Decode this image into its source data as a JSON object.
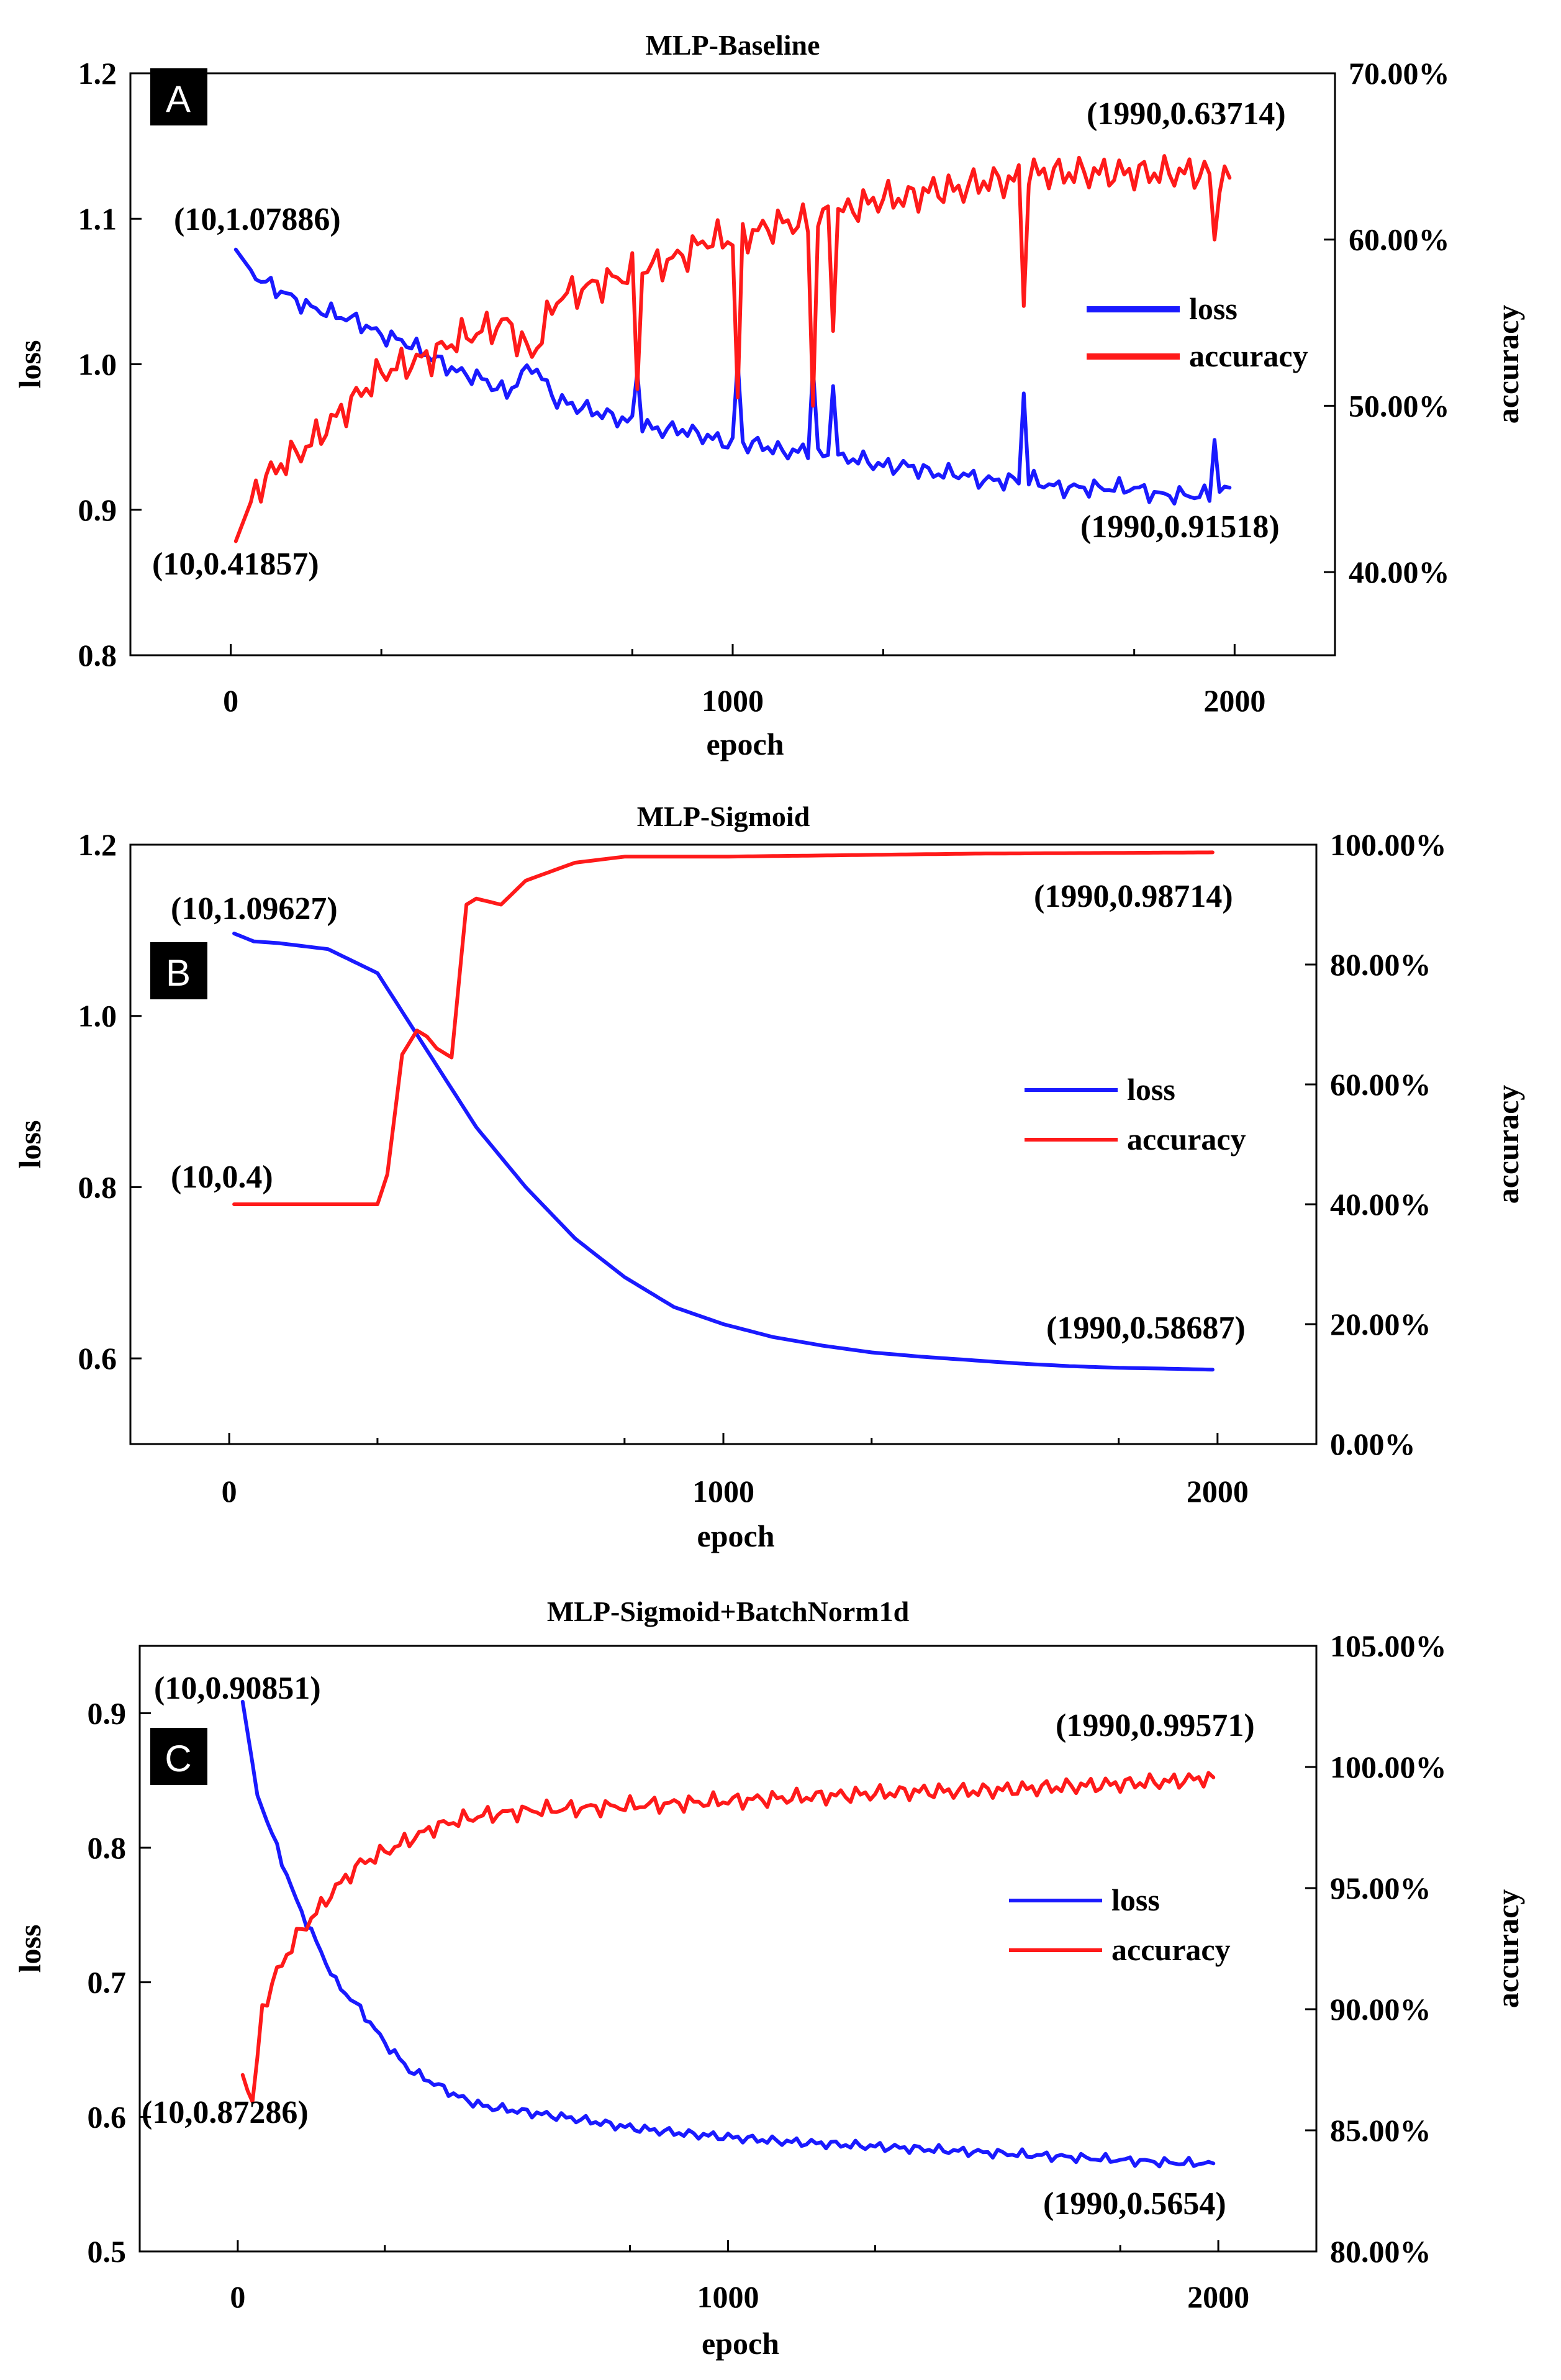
{
  "chart_data": [
    {
      "type": "line",
      "panel": "A",
      "title": "MLP-Baseline",
      "xlabel": "epoch",
      "ylabel": "loss",
      "y2label": "accuracy",
      "xlim": [
        -200,
        2200
      ],
      "ylim": [
        0.8,
        1.2
      ],
      "y2lim": [
        0.35,
        0.7
      ],
      "x_ticks": [
        0,
        1000,
        2000
      ],
      "y_ticks": [
        0.8,
        0.9,
        1.0,
        1.1,
        1.2
      ],
      "y_tick_labels": [
        "0.8",
        "0.9",
        "1.0",
        "1.1",
        "1.2"
      ],
      "y2_ticks": [
        0.4,
        0.5,
        0.6,
        0.7
      ],
      "y2_tick_labels": [
        "40.00%",
        "50.00%",
        "60.00%",
        "70.00%"
      ],
      "legend": {
        "position": "middle-right",
        "loss_label": "loss",
        "accuracy_label": "accuracy"
      },
      "annotations": {
        "loss_start": "(10,1.07886)",
        "loss_end": "(1990,0.91518)",
        "acc_start": "(10,0.41857)",
        "acc_end": "(1990,0.63714)"
      },
      "series": [
        {
          "name": "loss",
          "axis": "left",
          "color": "#1a1aff",
          "x": [
            10,
            50,
            100,
            150,
            200,
            250,
            300,
            350,
            400,
            450,
            500,
            550,
            600,
            650,
            700,
            750,
            800,
            850,
            900,
            950,
            1000,
            1050,
            1100,
            1150,
            1200,
            1250,
            1300,
            1350,
            1400,
            1450,
            1500,
            1550,
            1600,
            1650,
            1700,
            1750,
            1800,
            1850,
            1900,
            1950,
            1990
          ],
          "y": [
            1.07886,
            1.06,
            1.05,
            1.04,
            1.035,
            1.03,
            1.02,
            1.015,
            1.005,
            0.995,
            0.99,
            0.98,
            1.0,
            0.975,
            0.97,
            0.965,
            0.96,
            0.955,
            0.955,
            0.95,
            0.945,
            0.945,
            0.94,
            0.94,
            0.935,
            0.935,
            0.93,
            0.93,
            0.925,
            0.925,
            0.92,
            0.92,
            0.92,
            0.915,
            0.915,
            0.915,
            0.915,
            0.91,
            0.91,
            0.91,
            0.91518
          ],
          "spikes": [
            [
              810,
              0.995
            ],
            [
              1010,
              1.002
            ],
            [
              1160,
              0.998
            ],
            [
              1200,
              0.985
            ],
            [
              1580,
              0.98
            ],
            [
              1960,
              0.948
            ]
          ]
        },
        {
          "name": "accuracy",
          "axis": "right",
          "color": "#ff1a1a",
          "x": [
            10,
            50,
            100,
            150,
            200,
            250,
            300,
            350,
            400,
            450,
            500,
            550,
            600,
            650,
            700,
            750,
            800,
            850,
            900,
            950,
            1000,
            1050,
            1100,
            1150,
            1200,
            1250,
            1300,
            1350,
            1400,
            1450,
            1500,
            1550,
            1600,
            1650,
            1700,
            1750,
            1800,
            1850,
            1900,
            1950,
            1990
          ],
          "y": [
            0.41857,
            0.45,
            0.465,
            0.475,
            0.49,
            0.505,
            0.52,
            0.525,
            0.53,
            0.54,
            0.545,
            0.55,
            0.53,
            0.565,
            0.57,
            0.575,
            0.58,
            0.585,
            0.59,
            0.6,
            0.6,
            0.605,
            0.61,
            0.61,
            0.615,
            0.62,
            0.625,
            0.625,
            0.63,
            0.63,
            0.635,
            0.635,
            0.64,
            0.64,
            0.64,
            0.64,
            0.64,
            0.64,
            0.64,
            0.64,
            0.63714
          ],
          "spikes": [
            [
              810,
              0.51
            ],
            [
              1010,
              0.505
            ],
            [
              1160,
              0.5
            ],
            [
              1200,
              0.545
            ],
            [
              1580,
              0.56
            ],
            [
              1960,
              0.6
            ]
          ]
        }
      ]
    },
    {
      "type": "line",
      "panel": "B",
      "title": "MLP-Sigmoid",
      "xlabel": "epoch",
      "ylabel": "loss",
      "y2label": "accuracy",
      "xlim": [
        -200,
        2200
      ],
      "ylim": [
        0.5,
        1.2
      ],
      "y2lim": [
        0.0,
        1.0
      ],
      "x_ticks": [
        0,
        1000,
        2000
      ],
      "y_ticks": [
        0.6,
        0.8,
        1.0,
        1.2
      ],
      "y_tick_labels": [
        "0.6",
        "0.8",
        "1.0",
        "1.2"
      ],
      "y2_ticks": [
        0.0,
        0.2,
        0.4,
        0.6,
        0.8,
        1.0
      ],
      "y2_tick_labels": [
        "0.00%",
        "20.00%",
        "40.00%",
        "60.00%",
        "80.00%",
        "100.00%"
      ],
      "legend": {
        "position": "middle-right",
        "loss_label": "loss",
        "accuracy_label": "accuracy"
      },
      "annotations": {
        "loss_start": "(10,1.09627)",
        "loss_end": "(1990,0.58687)",
        "acc_start": "(10,0.4)",
        "acc_end": "(1990,0.98714)"
      },
      "series": [
        {
          "name": "loss",
          "axis": "left",
          "color": "#1a1aff",
          "x": [
            10,
            50,
            100,
            200,
            300,
            400,
            500,
            600,
            700,
            800,
            900,
            1000,
            1100,
            1200,
            1300,
            1400,
            1500,
            1600,
            1700,
            1800,
            1900,
            1990
          ],
          "y": [
            1.09627,
            1.087,
            1.085,
            1.078,
            1.05,
            0.96,
            0.87,
            0.8,
            0.74,
            0.695,
            0.66,
            0.64,
            0.625,
            0.615,
            0.607,
            0.602,
            0.598,
            0.594,
            0.591,
            0.589,
            0.588,
            0.58687
          ]
        },
        {
          "name": "accuracy",
          "axis": "right",
          "color": "#ff1a1a",
          "x": [
            10,
            100,
            200,
            300,
            320,
            350,
            380,
            400,
            420,
            450,
            480,
            500,
            550,
            600,
            700,
            800,
            1000,
            1500,
            1990
          ],
          "y": [
            0.4,
            0.4,
            0.4,
            0.4,
            0.45,
            0.65,
            0.69,
            0.68,
            0.66,
            0.645,
            0.9,
            0.91,
            0.9,
            0.94,
            0.97,
            0.98,
            0.98,
            0.985,
            0.98714
          ]
        }
      ]
    },
    {
      "type": "line",
      "panel": "C",
      "title": "MLP-Sigmoid+BatchNorm1d",
      "xlabel": "epoch",
      "ylabel": "loss",
      "y2label": "accuracy",
      "xlim": [
        -200,
        2200
      ],
      "ylim": [
        0.5,
        0.95
      ],
      "y2lim": [
        0.8,
        1.05
      ],
      "x_ticks": [
        0,
        1000,
        2000
      ],
      "y_ticks": [
        0.5,
        0.6,
        0.7,
        0.8,
        0.9
      ],
      "y_tick_labels": [
        "0.5",
        "0.6",
        "0.7",
        "0.8",
        "0.9"
      ],
      "y2_ticks": [
        0.8,
        0.85,
        0.9,
        0.95,
        1.0,
        1.05
      ],
      "y2_tick_labels": [
        "80.00%",
        "85.00%",
        "90.00%",
        "95.00%",
        "100.00%",
        "105.00%"
      ],
      "legend": {
        "position": "middle-right",
        "loss_label": "loss",
        "accuracy_label": "accuracy"
      },
      "annotations": {
        "loss_start": "(10,0.90851)",
        "loss_end": "(1990,0.5654)",
        "acc_start": "(10,0.87286)",
        "acc_end": "(1990,0.99571)"
      },
      "series": [
        {
          "name": "loss",
          "axis": "left",
          "color": "#1a1aff",
          "x": [
            10,
            40,
            80,
            120,
            160,
            200,
            250,
            300,
            350,
            400,
            450,
            500,
            600,
            700,
            800,
            900,
            1000,
            1100,
            1200,
            1300,
            1400,
            1500,
            1600,
            1700,
            1800,
            1900,
            1990
          ],
          "y": [
            0.90851,
            0.84,
            0.8,
            0.76,
            0.73,
            0.7,
            0.68,
            0.655,
            0.635,
            0.625,
            0.615,
            0.608,
            0.603,
            0.598,
            0.592,
            0.588,
            0.585,
            0.582,
            0.58,
            0.578,
            0.576,
            0.574,
            0.572,
            0.57,
            0.568,
            0.566,
            0.5654
          ]
        },
        {
          "name": "accuracy",
          "axis": "right",
          "color": "#ff1a1a",
          "x": [
            10,
            30,
            50,
            80,
            120,
            160,
            200,
            250,
            300,
            350,
            400,
            450,
            500,
            600,
            700,
            800,
            900,
            1000,
            1100,
            1200,
            1300,
            1400,
            1500,
            1600,
            1700,
            1800,
            1900,
            1990
          ],
          "y": [
            0.87286,
            0.86,
            0.9,
            0.915,
            0.93,
            0.94,
            0.95,
            0.96,
            0.965,
            0.97,
            0.975,
            0.978,
            0.98,
            0.982,
            0.983,
            0.984,
            0.985,
            0.986,
            0.987,
            0.988,
            0.989,
            0.99,
            0.99,
            0.991,
            0.992,
            0.993,
            0.994,
            0.99571
          ]
        }
      ]
    }
  ]
}
